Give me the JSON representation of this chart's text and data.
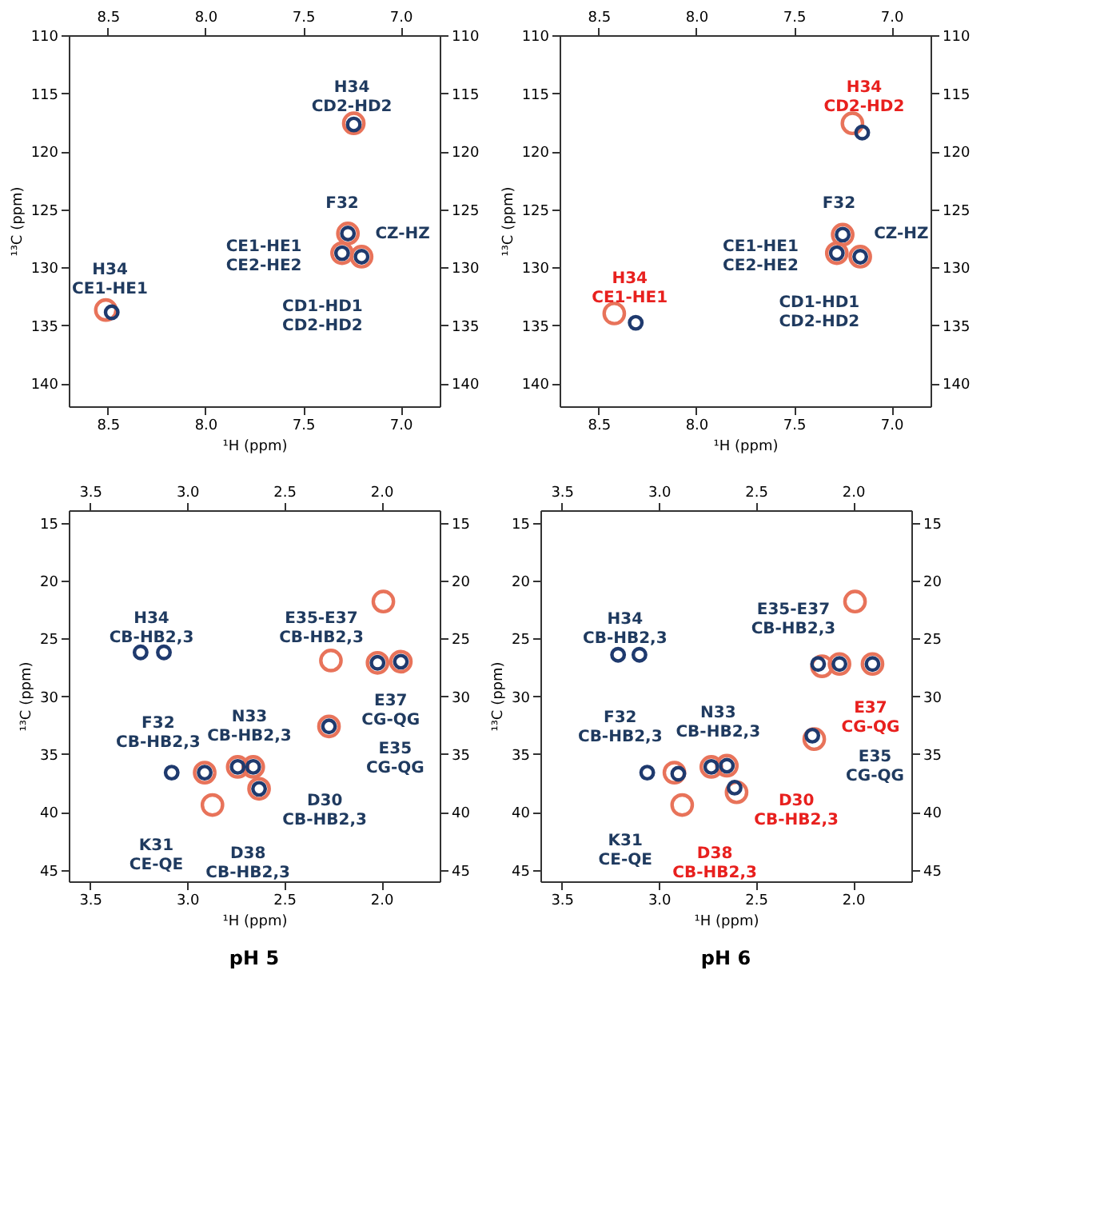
{
  "chart_data": [
    {
      "type": "scatter",
      "xlabel": "¹H (ppm)",
      "ylabel": "¹³C (ppm)",
      "marker": "circle",
      "grid": false,
      "xlim": [
        8.7,
        6.8
      ],
      "xticks": [
        {
          "value": 8.5,
          "label": "8.5"
        },
        {
          "value": 8,
          "label": "8.0"
        },
        {
          "value": 7.5,
          "label": "7.5"
        },
        {
          "value": 7,
          "label": "7.0"
        }
      ],
      "x2lim": [
        8.7,
        6.8
      ],
      "x2ticks": [
        {
          "value": 8.5,
          "label": "8.5"
        },
        {
          "value": 8,
          "label": "8.0"
        },
        {
          "value": 7.5,
          "label": "7.5"
        },
        {
          "value": 7,
          "label": "7.0"
        }
      ],
      "ylim": [
        142,
        110
      ],
      "yticks": [
        110,
        115,
        120,
        125,
        130,
        135,
        140
      ],
      "y2lim": [
        142,
        110
      ],
      "y2ticks": [
        110,
        115,
        120,
        125,
        130,
        135,
        140
      ],
      "series": [
        {
          "color": "#e8735a",
          "x": [
            7.24,
            7.27,
            7.3,
            7.2,
            8.51
          ],
          "values": [
            117.6,
            127.1,
            128.8,
            129.1,
            133.7
          ]
        },
        {
          "color": "#1f3a6e",
          "x": [
            7.24,
            7.27,
            7.3,
            7.2,
            8.48
          ],
          "values": [
            117.7,
            127.1,
            128.8,
            129.1,
            133.9
          ]
        }
      ],
      "annotations": [
        "H34\nCD2-HD2",
        "F32",
        "CZ-HZ",
        "CE1-HE1\nCE2-HE2",
        "CD1-HD1\nCD2-HD2",
        "H34\nCE1-HE1"
      ]
    },
    {
      "type": "scatter",
      "xlabel": "¹H (ppm)",
      "ylabel": "¹³C (ppm)",
      "marker": "circle",
      "grid": false,
      "xlim": [
        8.7,
        6.8
      ],
      "xticks": [
        {
          "value": 8.5,
          "label": "8.5"
        },
        {
          "value": 8,
          "label": "8.0"
        },
        {
          "value": 7.5,
          "label": "7.5"
        },
        {
          "value": 7,
          "label": "7.0"
        }
      ],
      "x2lim": [
        8.7,
        6.8
      ],
      "x2ticks": [
        {
          "value": 8.5,
          "label": "8.5"
        },
        {
          "value": 8,
          "label": "8.0"
        },
        {
          "value": 7.5,
          "label": "7.5"
        },
        {
          "value": 7,
          "label": "7.0"
        }
      ],
      "ylim": [
        142,
        110
      ],
      "yticks": [
        110,
        115,
        120,
        125,
        130,
        135,
        140
      ],
      "y2lim": [
        142,
        110
      ],
      "y2ticks": [
        110,
        115,
        120,
        125,
        130,
        135,
        140
      ],
      "series": [
        {
          "color": "#e8735a",
          "x": [
            7.2,
            7.25,
            7.28,
            7.16,
            8.42
          ],
          "values": [
            117.6,
            127.2,
            128.8,
            129.1,
            134.0
          ]
        },
        {
          "color": "#1f3a6e",
          "x": [
            7.15,
            7.25,
            7.28,
            7.16,
            8.31
          ],
          "values": [
            118.4,
            127.2,
            128.8,
            129.1,
            134.8
          ]
        }
      ],
      "annotations": [
        "H34\nCD2-HD2",
        "F32",
        "CZ-HZ",
        "CE1-HE1\nCE2-HE2",
        "CD1-HD1\nCD2-HD2",
        "H34\nCE1-HE1"
      ]
    },
    {
      "type": "scatter",
      "title": "pH 5",
      "xlabel": "¹H (ppm)",
      "ylabel": "¹³C (ppm)",
      "marker": "circle",
      "grid": false,
      "xlim": [
        3.61,
        1.7
      ],
      "xticks": [
        {
          "value": 3.5,
          "label": "3.5"
        },
        {
          "value": 3,
          "label": "3.0"
        },
        {
          "value": 2.5,
          "label": "2.5"
        },
        {
          "value": 2,
          "label": "2.0"
        }
      ],
      "x2lim": [
        3.61,
        1.7
      ],
      "x2ticks": [
        {
          "value": 3.5,
          "label": "3.5"
        },
        {
          "value": 3,
          "label": "3.0"
        },
        {
          "value": 2.5,
          "label": "2.5"
        },
        {
          "value": 2,
          "label": "2.0"
        }
      ],
      "ylim": [
        46,
        13.9
      ],
      "yticks": [
        15,
        20,
        25,
        30,
        35,
        40,
        45
      ],
      "y2lim": [
        46,
        13.9
      ],
      "y2ticks": [
        15,
        20,
        25,
        30,
        35,
        40,
        45
      ],
      "series": [
        {
          "color": "#e8735a",
          "x": [
            1.99,
            2.26,
            2.02,
            1.9,
            2.27,
            2.91,
            2.74,
            2.66,
            2.63,
            2.87
          ],
          "values": [
            21.8,
            26.9,
            27.1,
            27.0,
            32.6,
            36.6,
            36.1,
            36.1,
            38.0,
            39.4
          ]
        },
        {
          "color": "#1f3a6e",
          "x": [
            3.24,
            3.12,
            2.02,
            1.9,
            2.27,
            3.08,
            2.91,
            2.74,
            2.66,
            2.63
          ],
          "values": [
            26.2,
            26.2,
            27.1,
            27.0,
            32.6,
            36.6,
            36.6,
            36.1,
            36.1,
            38.0
          ]
        }
      ],
      "annotations": [
        "H34\nCB-HB2,3",
        "E35-E37\nCB-HB2,3",
        "E37\nCG-QG",
        "E35\nCG-QG",
        "F32\nCB-HB2,3",
        "N33\nCB-HB2,3",
        "D30\nCB-HB2,3",
        "K31\nCE-QE",
        "D38\nCB-HB2,3"
      ]
    },
    {
      "type": "scatter",
      "title": "pH 6",
      "xlabel": "¹H (ppm)",
      "ylabel": "¹³C (ppm)",
      "marker": "circle",
      "grid": false,
      "xlim": [
        3.61,
        1.7
      ],
      "xticks": [
        {
          "value": 3.5,
          "label": "3.5"
        },
        {
          "value": 3,
          "label": "3.0"
        },
        {
          "value": 2.5,
          "label": "2.5"
        },
        {
          "value": 2,
          "label": "2.0"
        }
      ],
      "x2lim": [
        3.61,
        1.7
      ],
      "x2ticks": [
        {
          "value": 3.5,
          "label": "3.5"
        },
        {
          "value": 3,
          "label": "3.0"
        },
        {
          "value": 2.5,
          "label": "2.5"
        },
        {
          "value": 2,
          "label": "2.0"
        }
      ],
      "ylim": [
        46,
        13.9
      ],
      "yticks": [
        15,
        20,
        25,
        30,
        35,
        40,
        45
      ],
      "y2lim": [
        46,
        13.9
      ],
      "y2ticks": [
        15,
        20,
        25,
        30,
        35,
        40,
        45
      ],
      "series": [
        {
          "color": "#e8735a",
          "x": [
            1.99,
            2.16,
            2.07,
            1.9,
            2.2,
            2.92,
            2.73,
            2.65,
            2.6,
            2.88
          ],
          "values": [
            21.8,
            27.4,
            27.2,
            27.2,
            33.7,
            36.6,
            36.1,
            36.0,
            38.3,
            39.4
          ]
        },
        {
          "color": "#1f3a6e",
          "x": [
            3.21,
            3.1,
            2.18,
            2.07,
            1.9,
            2.21,
            3.06,
            2.9,
            2.73,
            2.65,
            2.61
          ],
          "values": [
            26.4,
            26.4,
            27.2,
            27.2,
            27.2,
            33.4,
            36.6,
            36.7,
            36.1,
            36.0,
            37.9
          ]
        }
      ],
      "annotations": [
        "H34\nCB-HB2,3",
        "E35-E37\nCB-HB2,3",
        "E37\nCG-QG",
        "E35\nCG-QG",
        "F32\nCB-HB2,3",
        "N33\nCB-HB2,3",
        "D30\nCB-HB2,3",
        "K31\nCE-QE",
        "D38\nCB-HB2,3"
      ]
    }
  ]
}
